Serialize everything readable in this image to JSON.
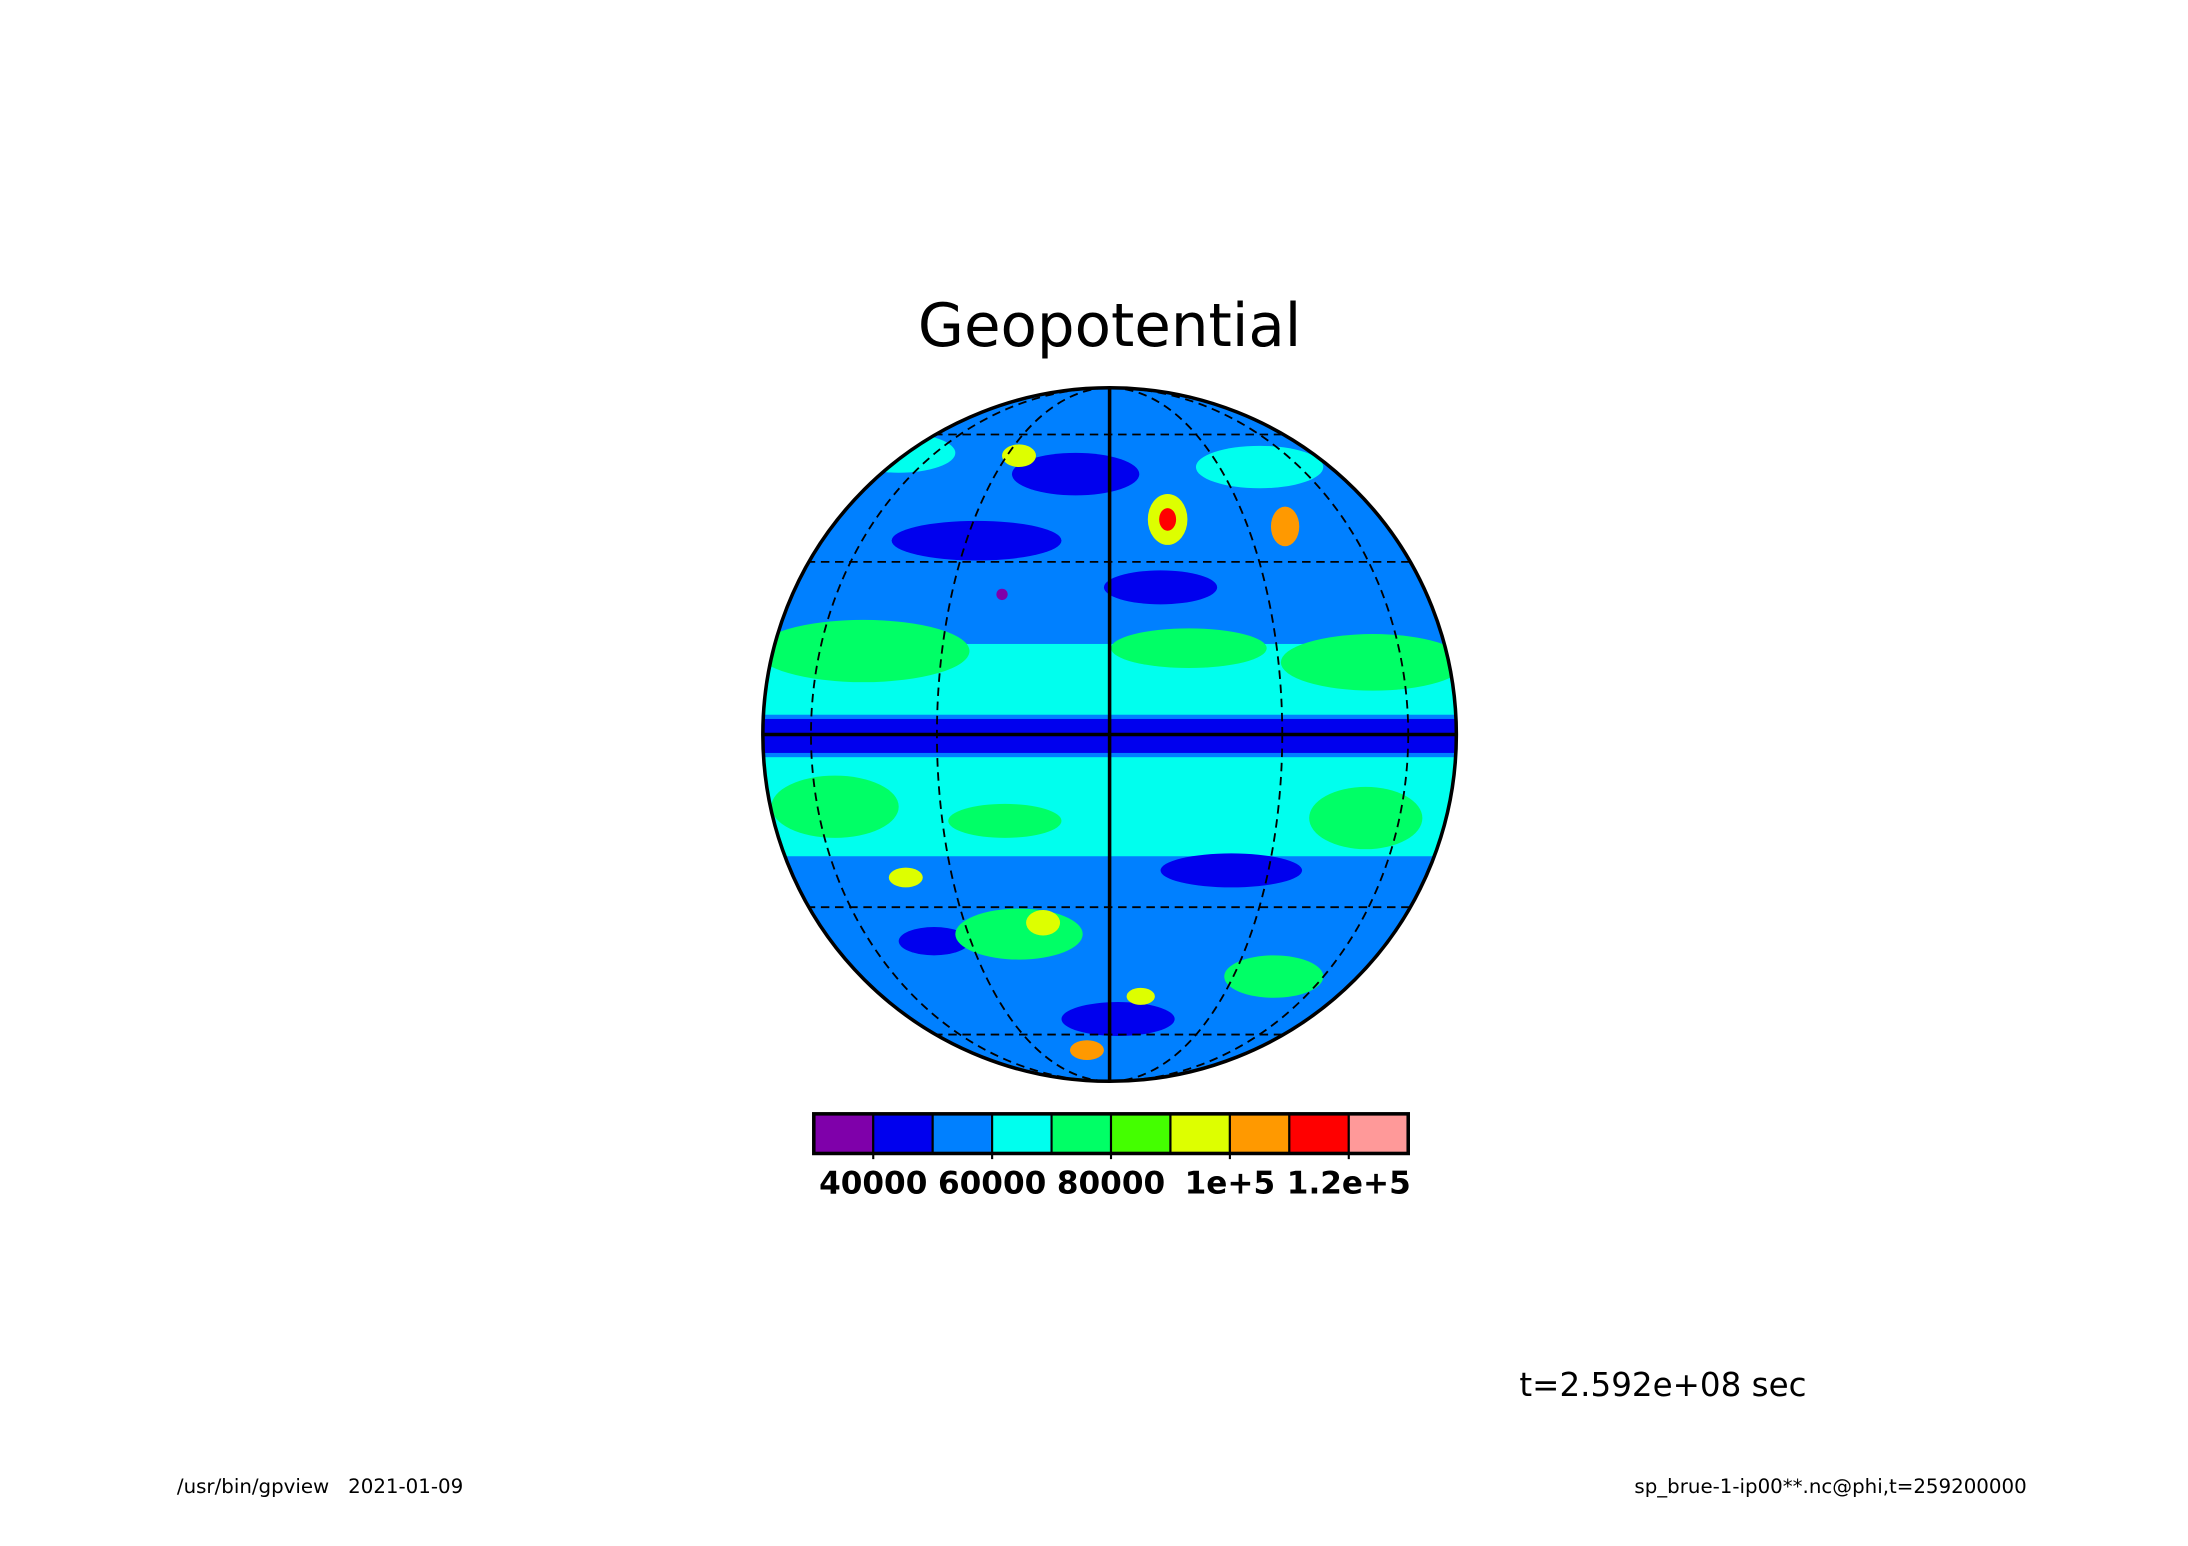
{
  "chart_data": {
    "type": "contour",
    "title": "Geopotential",
    "colorbar": {
      "colors": [
        "#7f00aa",
        "#0000ee",
        "#0080ff",
        "#00ffee",
        "#00ff66",
        "#44ff00",
        "#ddff00",
        "#ff9900",
        "#ff0000",
        "#ff9999"
      ],
      "lim": [
        30000,
        130000
      ],
      "ticks": [
        40000,
        60000,
        80000,
        {
          "value": 100000,
          "label": "1e+5"
        },
        {
          "value": 120000,
          "label": "1.2e+5"
        }
      ]
    },
    "annotation": "t=2.592e+08 sec",
    "footer_left": "/usr/bin/gpview   2021-01-09",
    "footer_right": "sp_brue-1-ip00**.nc@phi,t=259200000"
  }
}
